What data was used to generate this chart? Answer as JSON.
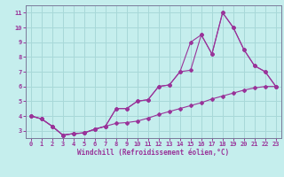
{
  "title": "",
  "xlabel": "Windchill (Refroidissement éolien,°C)",
  "ylabel": "",
  "bg_color": "#c5eeed",
  "grid_color": "#a8d8d8",
  "line_color": "#993399",
  "xlim": [
    -0.5,
    23.5
  ],
  "ylim": [
    2.5,
    11.5
  ],
  "yticks": [
    3,
    4,
    5,
    6,
    7,
    8,
    9,
    10,
    11
  ],
  "xticks": [
    0,
    1,
    2,
    3,
    4,
    5,
    6,
    7,
    8,
    9,
    10,
    11,
    12,
    13,
    14,
    15,
    16,
    17,
    18,
    19,
    20,
    21,
    22,
    23
  ],
  "line1_x": [
    0,
    1,
    2,
    3,
    4,
    5,
    6,
    7,
    8,
    9,
    10,
    11,
    12,
    13,
    14,
    15,
    16,
    17,
    18,
    19,
    20,
    21,
    22,
    23
  ],
  "line1_y": [
    4.0,
    3.8,
    3.3,
    2.7,
    2.8,
    2.85,
    3.1,
    3.3,
    3.5,
    3.55,
    3.65,
    3.85,
    4.1,
    4.3,
    4.5,
    4.7,
    4.9,
    5.15,
    5.35,
    5.55,
    5.75,
    5.9,
    6.0,
    6.0
  ],
  "line2_x": [
    0,
    1,
    2,
    3,
    4,
    5,
    6,
    7,
    8,
    9,
    10,
    11,
    12,
    13,
    14,
    15,
    16,
    17,
    18,
    19,
    20,
    21,
    22,
    23
  ],
  "line2_y": [
    4.0,
    3.8,
    3.3,
    2.7,
    2.8,
    2.85,
    3.1,
    3.3,
    4.5,
    4.5,
    5.0,
    5.1,
    6.0,
    6.1,
    7.0,
    9.0,
    9.5,
    8.2,
    11.0,
    10.0,
    8.5,
    7.4,
    7.0,
    6.0
  ],
  "line3_x": [
    0,
    1,
    2,
    3,
    4,
    5,
    6,
    7,
    8,
    9,
    10,
    11,
    12,
    13,
    14,
    15,
    16,
    17,
    18,
    19,
    20,
    21,
    22,
    23
  ],
  "line3_y": [
    4.0,
    3.8,
    3.3,
    2.7,
    2.8,
    2.85,
    3.1,
    3.3,
    4.5,
    4.5,
    5.0,
    5.1,
    6.0,
    6.1,
    7.0,
    7.1,
    9.5,
    8.2,
    11.0,
    10.0,
    8.5,
    7.4,
    7.0,
    6.0
  ]
}
